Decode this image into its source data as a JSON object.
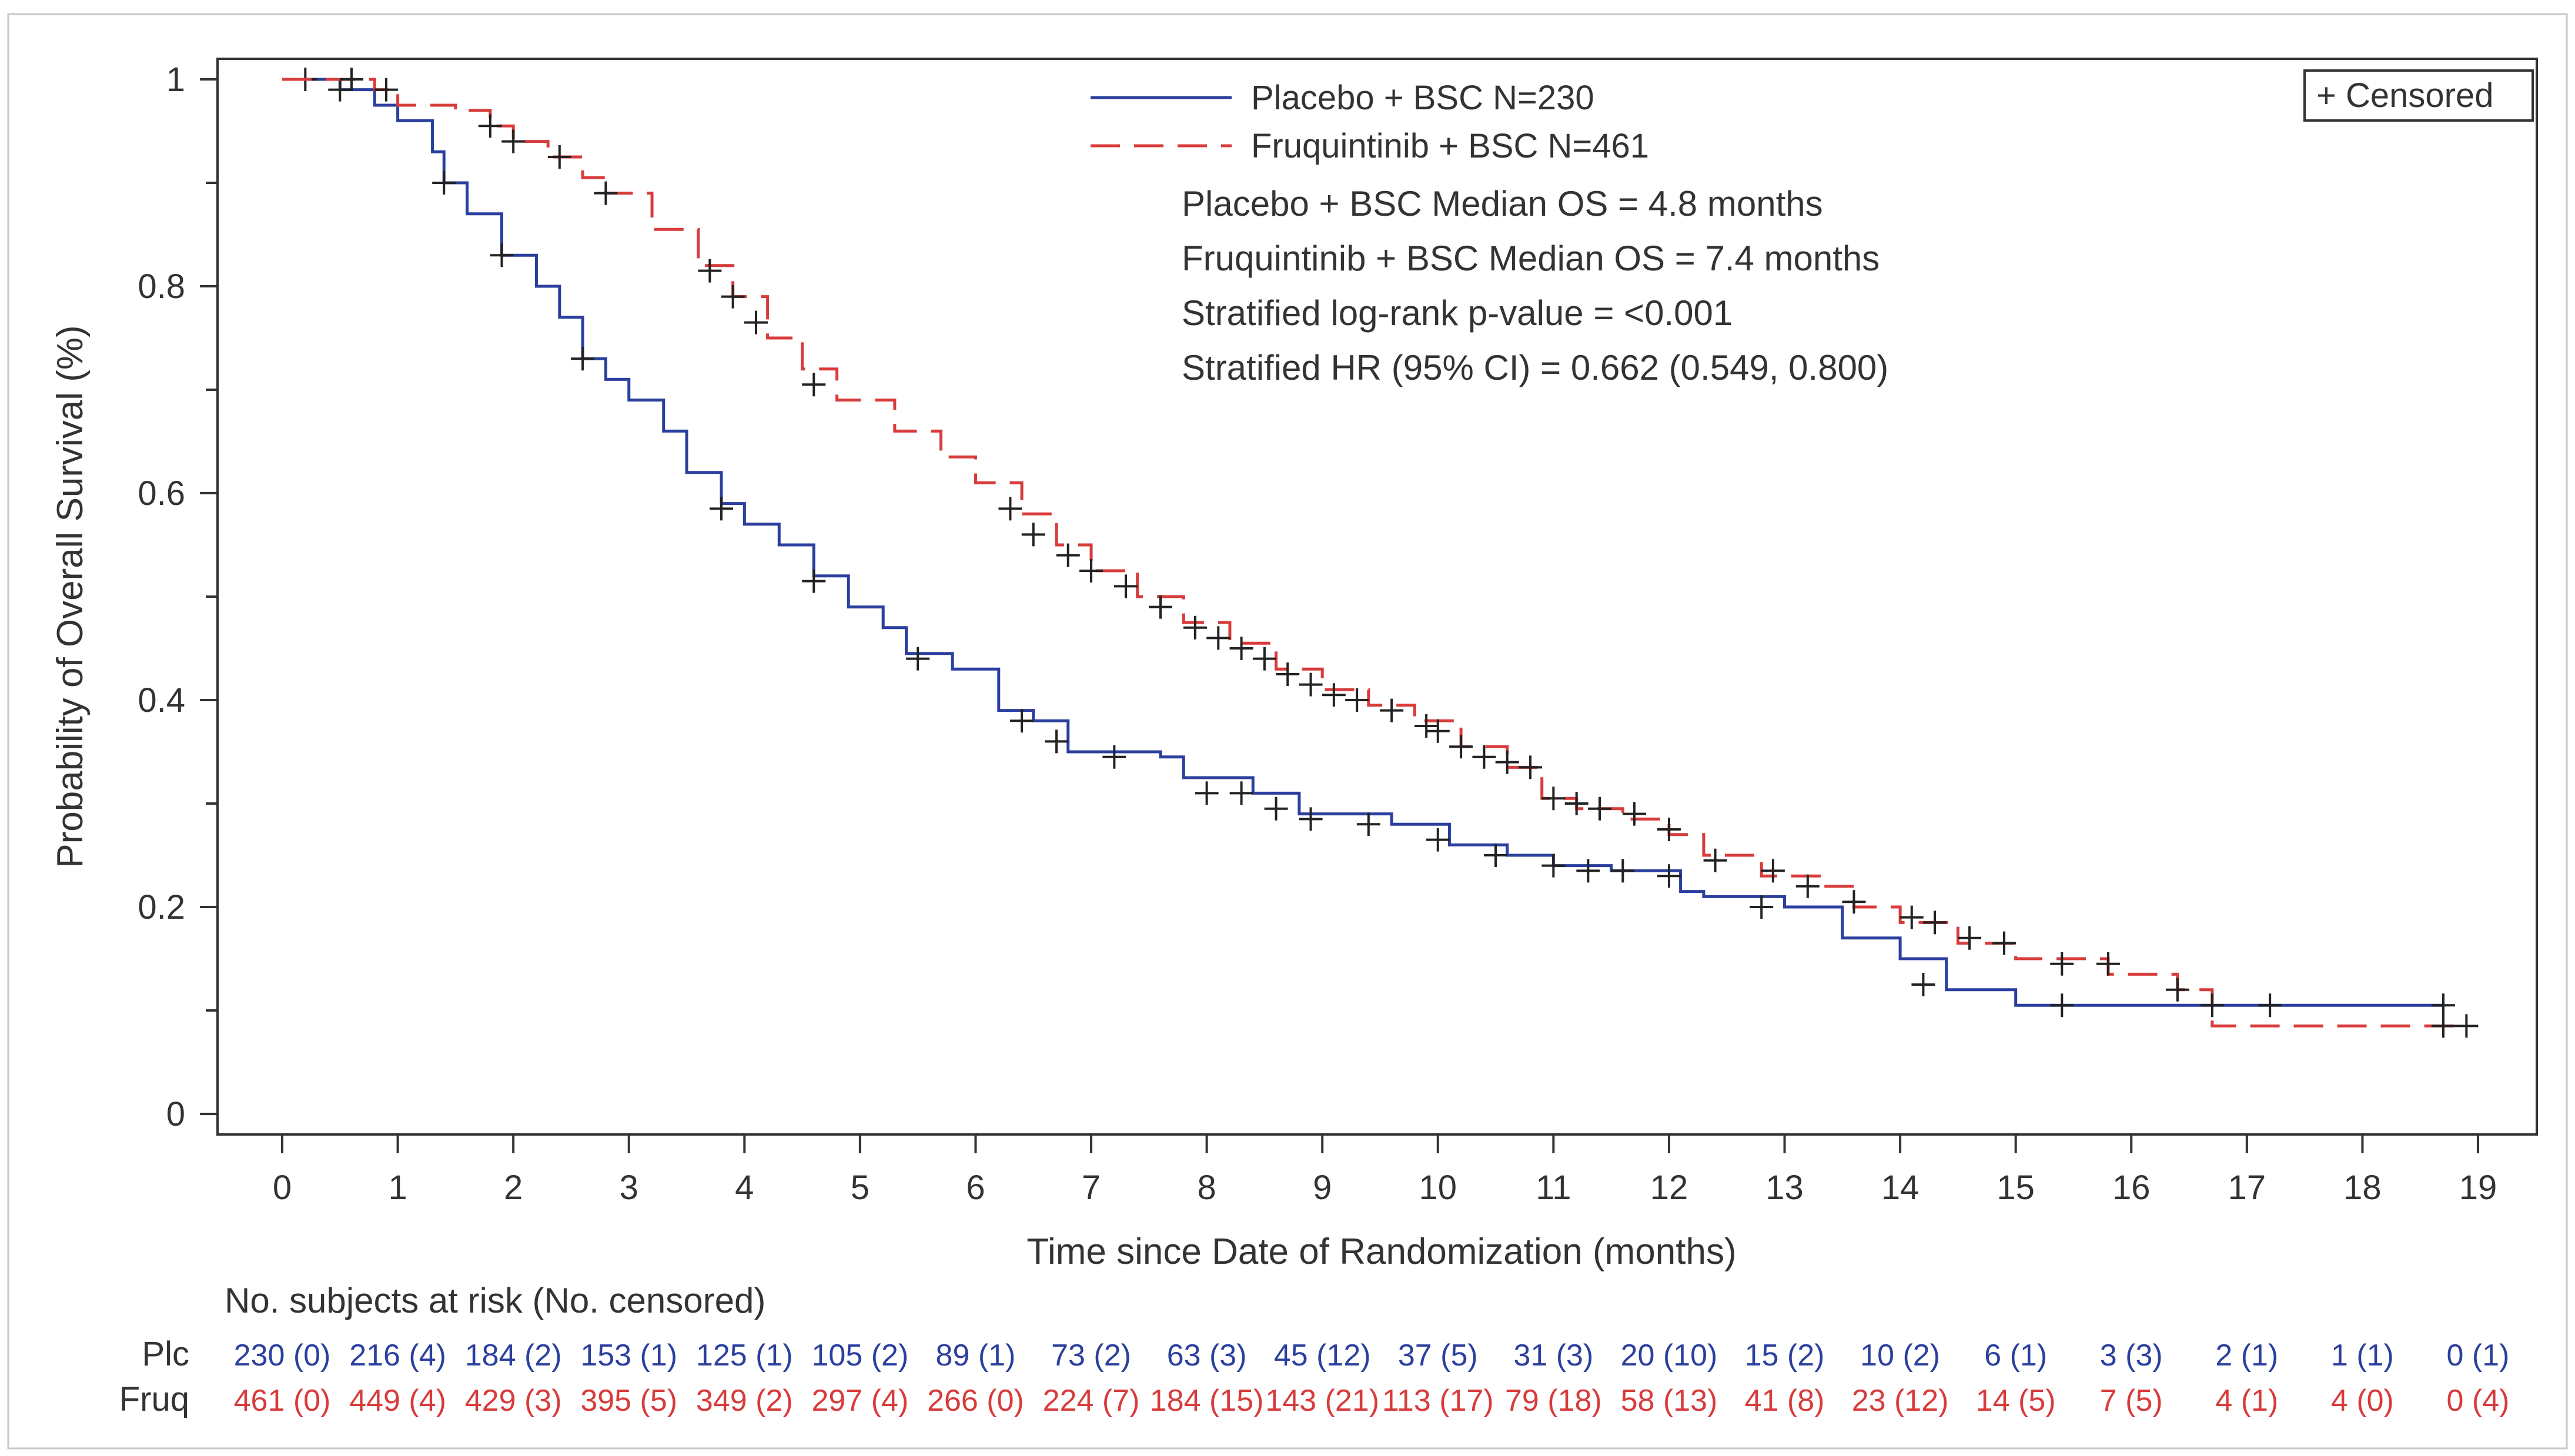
{
  "chart_data": {
    "type": "line",
    "title": "",
    "xlabel": "Time since Date of Randomization (months)",
    "ylabel": "Probability of Overall Survival (%)",
    "xlim": [
      0,
      19
    ],
    "ylim": [
      0,
      1
    ],
    "x_ticks": [
      0,
      1,
      2,
      3,
      4,
      5,
      6,
      7,
      8,
      9,
      10,
      11,
      12,
      13,
      14,
      15,
      16,
      17,
      18,
      19
    ],
    "y_ticks": [
      0,
      0.2,
      0.4,
      0.6,
      0.8,
      1
    ],
    "y_tick_labels": [
      "0",
      "0.2",
      "0.4",
      "0.6",
      "0.8",
      "1"
    ],
    "grid": false,
    "legend_position": "top-center",
    "censored_legend": "+ Censored",
    "annotations": [
      "Placebo + BSC Median OS = 4.8 months",
      "Fruquintinib + BSC Median OS = 7.4 months",
      "Stratified log-rank p-value = <0.001",
      "Stratified HR (95% CI) = 0.662 (0.549, 0.800)"
    ],
    "series": [
      {
        "name": "Placebo + BSC N=230",
        "color": "#2b3f9e",
        "dash": "solid",
        "points": [
          [
            0,
            1
          ],
          [
            0.5,
            0.99
          ],
          [
            0.8,
            0.975
          ],
          [
            1.0,
            0.96
          ],
          [
            1.3,
            0.93
          ],
          [
            1.4,
            0.9
          ],
          [
            1.6,
            0.87
          ],
          [
            1.9,
            0.83
          ],
          [
            2.2,
            0.8
          ],
          [
            2.4,
            0.77
          ],
          [
            2.6,
            0.73
          ],
          [
            2.8,
            0.71
          ],
          [
            3.0,
            0.69
          ],
          [
            3.3,
            0.66
          ],
          [
            3.5,
            0.62
          ],
          [
            3.8,
            0.59
          ],
          [
            4.0,
            0.57
          ],
          [
            4.3,
            0.55
          ],
          [
            4.6,
            0.52
          ],
          [
            4.9,
            0.49
          ],
          [
            5.2,
            0.47
          ],
          [
            5.4,
            0.445
          ],
          [
            5.8,
            0.43
          ],
          [
            6.2,
            0.39
          ],
          [
            6.5,
            0.38
          ],
          [
            6.8,
            0.35
          ],
          [
            7.6,
            0.345
          ],
          [
            7.8,
            0.325
          ],
          [
            8.4,
            0.31
          ],
          [
            8.8,
            0.29
          ],
          [
            9.6,
            0.28
          ],
          [
            10.1,
            0.26
          ],
          [
            10.6,
            0.25
          ],
          [
            11.0,
            0.24
          ],
          [
            11.5,
            0.235
          ],
          [
            12.1,
            0.215
          ],
          [
            12.3,
            0.21
          ],
          [
            13.0,
            0.2
          ],
          [
            13.5,
            0.17
          ],
          [
            14.0,
            0.15
          ],
          [
            14.4,
            0.12
          ],
          [
            15.0,
            0.105
          ],
          [
            18.7,
            0.105
          ]
        ],
        "censored": [
          [
            0.2,
            1
          ],
          [
            0.5,
            0.99
          ],
          [
            1.4,
            0.9
          ],
          [
            1.9,
            0.83
          ],
          [
            2.6,
            0.73
          ],
          [
            3.8,
            0.585
          ],
          [
            4.6,
            0.515
          ],
          [
            5.5,
            0.44
          ],
          [
            6.4,
            0.38
          ],
          [
            6.7,
            0.36
          ],
          [
            7.2,
            0.345
          ],
          [
            8.0,
            0.31
          ],
          [
            8.3,
            0.31
          ],
          [
            8.6,
            0.295
          ],
          [
            8.9,
            0.285
          ],
          [
            9.4,
            0.28
          ],
          [
            10.0,
            0.265
          ],
          [
            10.5,
            0.25
          ],
          [
            11.0,
            0.24
          ],
          [
            11.3,
            0.235
          ],
          [
            11.6,
            0.235
          ],
          [
            12.0,
            0.23
          ],
          [
            12.8,
            0.2
          ],
          [
            14.2,
            0.125
          ],
          [
            15.4,
            0.105
          ],
          [
            18.7,
            0.105
          ]
        ]
      },
      {
        "name": "Fruquintinib + BSC N=461",
        "color": "#d83b3b",
        "dash": "dashed",
        "points": [
          [
            0,
            1
          ],
          [
            0.8,
            0.99
          ],
          [
            1.0,
            0.975
          ],
          [
            1.5,
            0.97
          ],
          [
            1.8,
            0.955
          ],
          [
            2.0,
            0.94
          ],
          [
            2.3,
            0.925
          ],
          [
            2.6,
            0.905
          ],
          [
            2.8,
            0.89
          ],
          [
            3.2,
            0.855
          ],
          [
            3.6,
            0.82
          ],
          [
            3.9,
            0.79
          ],
          [
            4.2,
            0.75
          ],
          [
            4.5,
            0.72
          ],
          [
            4.8,
            0.69
          ],
          [
            5.3,
            0.66
          ],
          [
            5.7,
            0.635
          ],
          [
            6.0,
            0.61
          ],
          [
            6.4,
            0.58
          ],
          [
            6.7,
            0.55
          ],
          [
            7.0,
            0.525
          ],
          [
            7.4,
            0.5
          ],
          [
            7.8,
            0.475
          ],
          [
            8.2,
            0.455
          ],
          [
            8.6,
            0.43
          ],
          [
            9.0,
            0.41
          ],
          [
            9.4,
            0.395
          ],
          [
            9.8,
            0.38
          ],
          [
            10.2,
            0.355
          ],
          [
            10.6,
            0.335
          ],
          [
            10.9,
            0.305
          ],
          [
            11.2,
            0.295
          ],
          [
            11.6,
            0.285
          ],
          [
            12.0,
            0.27
          ],
          [
            12.3,
            0.25
          ],
          [
            12.8,
            0.23
          ],
          [
            13.3,
            0.22
          ],
          [
            13.6,
            0.2
          ],
          [
            14.0,
            0.185
          ],
          [
            14.5,
            0.165
          ],
          [
            15.0,
            0.15
          ],
          [
            15.8,
            0.135
          ],
          [
            16.4,
            0.12
          ],
          [
            16.7,
            0.085
          ],
          [
            18.9,
            0.085
          ]
        ],
        "censored": [
          [
            0.6,
            1
          ],
          [
            0.9,
            0.99
          ],
          [
            1.8,
            0.955
          ],
          [
            2.0,
            0.94
          ],
          [
            2.4,
            0.925
          ],
          [
            2.8,
            0.89
          ],
          [
            3.7,
            0.815
          ],
          [
            3.9,
            0.79
          ],
          [
            4.1,
            0.765
          ],
          [
            4.6,
            0.705
          ],
          [
            6.3,
            0.585
          ],
          [
            6.5,
            0.56
          ],
          [
            6.8,
            0.54
          ],
          [
            7.0,
            0.525
          ],
          [
            7.3,
            0.51
          ],
          [
            7.6,
            0.49
          ],
          [
            7.9,
            0.47
          ],
          [
            8.1,
            0.46
          ],
          [
            8.3,
            0.45
          ],
          [
            8.5,
            0.44
          ],
          [
            8.7,
            0.425
          ],
          [
            8.9,
            0.415
          ],
          [
            9.1,
            0.405
          ],
          [
            9.3,
            0.4
          ],
          [
            9.6,
            0.39
          ],
          [
            9.9,
            0.375
          ],
          [
            10.0,
            0.37
          ],
          [
            10.2,
            0.355
          ],
          [
            10.4,
            0.345
          ],
          [
            10.6,
            0.34
          ],
          [
            10.8,
            0.335
          ],
          [
            11.0,
            0.305
          ],
          [
            11.2,
            0.3
          ],
          [
            11.4,
            0.295
          ],
          [
            11.7,
            0.29
          ],
          [
            12.0,
            0.275
          ],
          [
            12.4,
            0.245
          ],
          [
            12.9,
            0.235
          ],
          [
            13.2,
            0.22
          ],
          [
            13.6,
            0.205
          ],
          [
            14.1,
            0.19
          ],
          [
            14.3,
            0.185
          ],
          [
            14.6,
            0.17
          ],
          [
            14.9,
            0.165
          ],
          [
            15.4,
            0.145
          ],
          [
            15.8,
            0.145
          ],
          [
            16.4,
            0.12
          ],
          [
            16.7,
            0.105
          ],
          [
            17.2,
            0.105
          ],
          [
            18.7,
            0.085
          ],
          [
            18.9,
            0.085
          ]
        ]
      }
    ],
    "risk_table": {
      "header": "No. subjects at risk (No. censored)",
      "rows": [
        {
          "label": "Plc",
          "color": "#2b3f9e",
          "values": [
            "230 (0)",
            "216 (4)",
            "184 (2)",
            "153 (1)",
            "125 (1)",
            "105 (2)",
            "89 (1)",
            "73 (2)",
            "63 (3)",
            "45 (12)",
            "37 (5)",
            "31 (3)",
            "20 (10)",
            "15 (2)",
            "10 (2)",
            "6 (1)",
            "3 (3)",
            "2 (1)",
            "1 (1)",
            "0 (1)"
          ]
        },
        {
          "label": "Fruq",
          "color": "#d83b3b",
          "values": [
            "461 (0)",
            "449 (4)",
            "429 (3)",
            "395 (5)",
            "349 (2)",
            "297 (4)",
            "266 (0)",
            "224 (7)",
            "184 (15)",
            "143 (21)",
            "113 (17)",
            "79 (18)",
            "58 (13)",
            "41 (8)",
            "23 (12)",
            "14 (5)",
            "7 (5)",
            "4 (1)",
            "4 (0)",
            "0 (4)"
          ]
        }
      ]
    }
  }
}
